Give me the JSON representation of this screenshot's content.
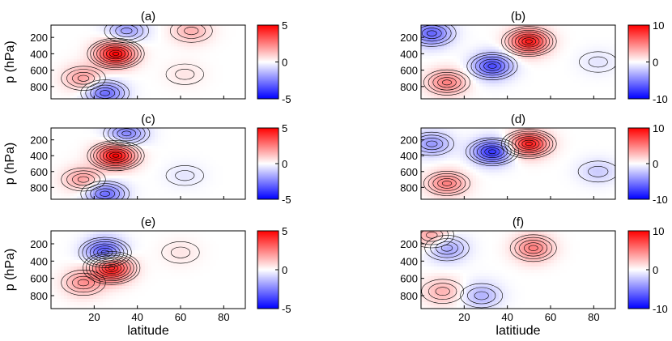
{
  "chart_data": [
    {
      "panel": "(a)",
      "type": "heatmap",
      "colorbar_ticks": [
        "5",
        "0",
        "-5"
      ],
      "clim": [
        -5,
        5
      ],
      "ylabel": "p (hPa)",
      "y_ticks": [
        "200",
        "400",
        "600",
        "800"
      ],
      "xlabel": "",
      "x_ticks": [],
      "features": [
        {
          "lat": 30,
          "p": 400,
          "value": 5
        },
        {
          "lat": 35,
          "p": 120,
          "value": -2
        },
        {
          "lat": 25,
          "p": 880,
          "value": -3
        },
        {
          "lat": 15,
          "p": 700,
          "value": 2
        },
        {
          "lat": 65,
          "p": 120,
          "value": 1.5
        },
        {
          "lat": 62,
          "p": 650,
          "value": 0.5
        }
      ]
    },
    {
      "panel": "(b)",
      "type": "heatmap",
      "colorbar_ticks": [
        "10",
        "0",
        "-10"
      ],
      "clim": [
        -10,
        10
      ],
      "ylabel": "",
      "y_ticks": [
        "200",
        "400",
        "600",
        "800"
      ],
      "xlabel": "",
      "x_ticks": [],
      "features": [
        {
          "lat": 50,
          "p": 250,
          "value": 9
        },
        {
          "lat": 33,
          "p": 550,
          "value": -7
        },
        {
          "lat": 12,
          "p": 750,
          "value": 5
        },
        {
          "lat": 5,
          "p": 150,
          "value": -6
        },
        {
          "lat": 82,
          "p": 500,
          "value": -1
        }
      ]
    },
    {
      "panel": "(c)",
      "type": "heatmap",
      "colorbar_ticks": [
        "5",
        "0",
        "-5"
      ],
      "clim": [
        -5,
        5
      ],
      "ylabel": "p (hPa)",
      "y_ticks": [
        "200",
        "400",
        "600",
        "800"
      ],
      "xlabel": "",
      "x_ticks": [],
      "features": [
        {
          "lat": 30,
          "p": 400,
          "value": 5
        },
        {
          "lat": 35,
          "p": 120,
          "value": -2.5
        },
        {
          "lat": 25,
          "p": 880,
          "value": -3
        },
        {
          "lat": 15,
          "p": 700,
          "value": 2
        },
        {
          "lat": 62,
          "p": 650,
          "value": -0.5
        }
      ]
    },
    {
      "panel": "(d)",
      "type": "heatmap",
      "colorbar_ticks": [
        "10",
        "0",
        "-10"
      ],
      "clim": [
        -10,
        10
      ],
      "ylabel": "",
      "y_ticks": [
        "200",
        "400",
        "600",
        "800"
      ],
      "xlabel": "",
      "x_ticks": [],
      "features": [
        {
          "lat": 50,
          "p": 250,
          "value": 9
        },
        {
          "lat": 33,
          "p": 350,
          "value": -8
        },
        {
          "lat": 12,
          "p": 750,
          "value": 5
        },
        {
          "lat": 5,
          "p": 250,
          "value": -4
        },
        {
          "lat": 82,
          "p": 600,
          "value": -2
        }
      ]
    },
    {
      "panel": "(e)",
      "type": "heatmap",
      "colorbar_ticks": [
        "5",
        "0",
        "-5"
      ],
      "clim": [
        -5,
        5
      ],
      "ylabel": "p (hPa)",
      "y_ticks": [
        "200",
        "400",
        "600",
        "800"
      ],
      "xlabel": "latitude",
      "x_ticks": [
        "20",
        "40",
        "60",
        "80"
      ],
      "features": [
        {
          "lat": 28,
          "p": 480,
          "value": 5
        },
        {
          "lat": 25,
          "p": 300,
          "value": -4
        },
        {
          "lat": 15,
          "p": 650,
          "value": 2
        },
        {
          "lat": 60,
          "p": 300,
          "value": 0.5
        }
      ]
    },
    {
      "panel": "(f)",
      "type": "heatmap",
      "colorbar_ticks": [
        "10",
        "0",
        "-10"
      ],
      "clim": [
        -10,
        10
      ],
      "ylabel": "",
      "y_ticks": [
        "200",
        "400",
        "600",
        "800"
      ],
      "xlabel": "latitiude",
      "x_ticks": [
        "20",
        "40",
        "60",
        "80"
      ],
      "features": [
        {
          "lat": 52,
          "p": 250,
          "value": 5
        },
        {
          "lat": 12,
          "p": 250,
          "value": -4
        },
        {
          "lat": 28,
          "p": 800,
          "value": -3
        },
        {
          "lat": 10,
          "p": 750,
          "value": 3
        },
        {
          "lat": 5,
          "p": 100,
          "value": 4
        }
      ]
    }
  ],
  "colors": {
    "positive": "#ff0000",
    "zero": "#ffffff",
    "negative": "#0000ff",
    "contour": "#000000"
  }
}
